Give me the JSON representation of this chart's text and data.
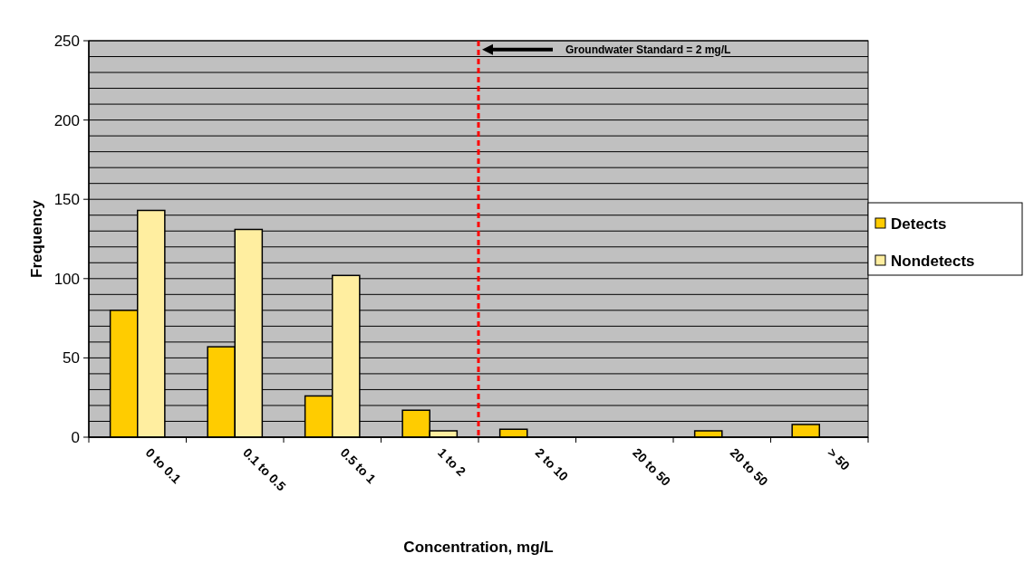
{
  "chart_data": {
    "type": "bar",
    "xlabel": "Concentration, mg/L",
    "ylabel": "Frequency",
    "categories": [
      "0 to 0.1",
      "0.1 to 0.5",
      "0.5 to 1",
      "1 to 2",
      "2 to 10",
      "20 to 50",
      "20 to 50",
      "> 50"
    ],
    "series": [
      {
        "name": "Detects",
        "color": "#ffcc00",
        "values": [
          80,
          57,
          26,
          17,
          5,
          0,
          4,
          8
        ]
      },
      {
        "name": "Nondetects",
        "color": "#ffeea0",
        "values": [
          143,
          131,
          102,
          4,
          0,
          0,
          0,
          0
        ]
      }
    ],
    "ylim": [
      0,
      250
    ],
    "yticks": [
      0,
      {
        "value": 10,
        "label": null
      },
      {
        "value": 20,
        "label": null
      },
      {
        "value": 30,
        "label": null
      },
      {
        "value": 40,
        "label": null
      },
      50,
      {
        "value": 60,
        "label": null
      },
      {
        "value": 70,
        "label": null
      },
      {
        "value": 80,
        "label": null
      },
      {
        "value": 90,
        "label": null
      },
      100,
      {
        "value": 110,
        "label": null
      },
      {
        "value": 120,
        "label": null
      },
      {
        "value": 130,
        "label": null
      },
      {
        "value": 140,
        "label": null
      },
      150,
      {
        "value": 160,
        "label": null
      },
      {
        "value": 170,
        "label": null
      },
      {
        "value": 180,
        "label": null
      },
      {
        "value": 190,
        "label": null
      },
      200,
      {
        "value": 210,
        "label": null
      },
      {
        "value": 220,
        "label": null
      },
      {
        "value": 230,
        "label": null
      },
      {
        "value": 240,
        "label": null
      },
      250
    ],
    "grid": "y",
    "legend": "right",
    "annotations": [
      "Groundwater Standard = 2 mg/L"
    ]
  }
}
